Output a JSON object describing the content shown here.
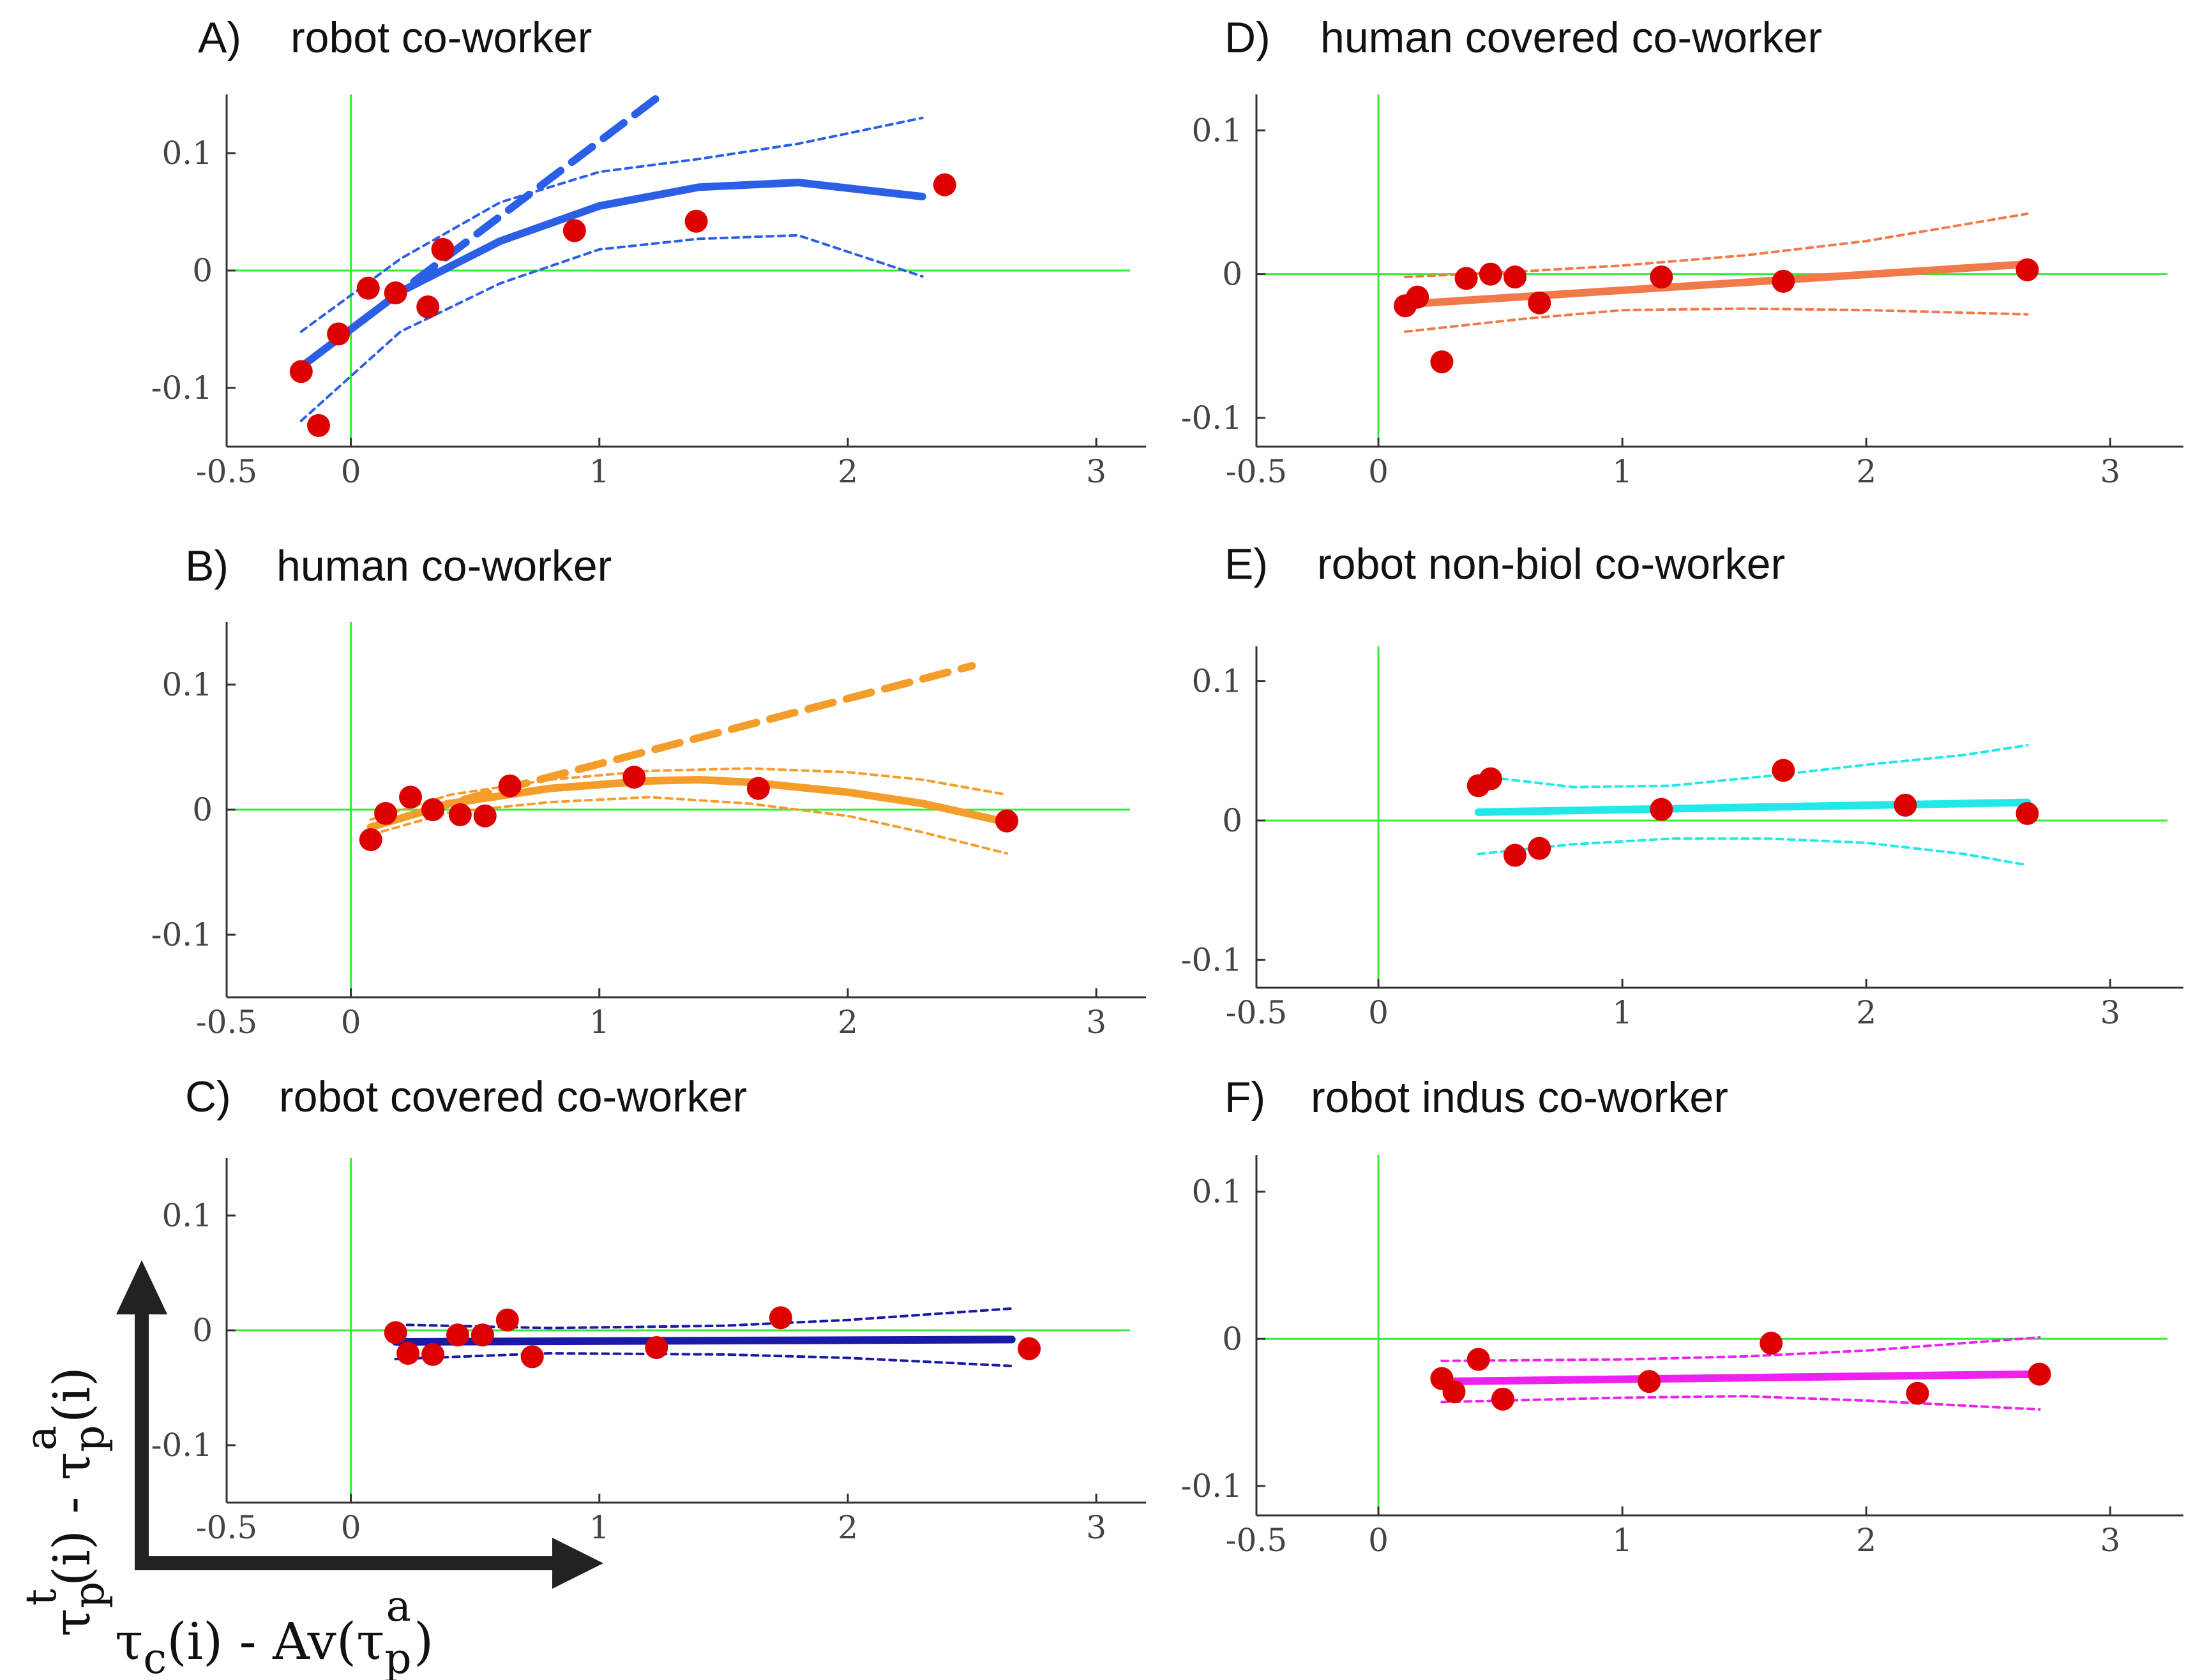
{
  "colors": {
    "zero_lines": "#33ee33",
    "points": "#dd0000",
    "axes": "#333333",
    "arrows": "#222222",
    "robot_co_worker": "#2a5fe6",
    "human_co_worker": "#f59d2a",
    "robot_covered_co_worker": "#1a1aa6",
    "human_covered_co_worker": "#f07a4a",
    "robot_non_biol_co_worker": "#22e8e8",
    "robot_indus_co_worker": "#ee22ee"
  },
  "axis_titles": {
    "y": {
      "base": "τ",
      "sub1": "p",
      "sup1": "t",
      "mid": "(i) - ",
      "base2": "τ",
      "sub2": "p",
      "sup2": "a",
      "end": "(i)"
    },
    "x": {
      "base": "τ",
      "sub1": "c",
      "mid": "(i) - Av(",
      "base2": "τ",
      "sub2": "p",
      "sup2": "a",
      "end": ")"
    }
  },
  "chart_data": [
    {
      "id": "A",
      "label": "A)",
      "title": "robot co-worker",
      "type": "scatter",
      "color_key": "robot_co_worker",
      "xlim": [
        -0.5,
        3.2
      ],
      "ylim": [
        -0.15,
        0.15
      ],
      "xticks": [
        -0.5,
        0,
        1,
        2,
        3
      ],
      "xtick_labels": [
        "-0.5",
        "0",
        "1",
        "2",
        "3"
      ],
      "yticks": [
        -0.1,
        0,
        0.1
      ],
      "ytick_labels": [
        "-0.1",
        "0",
        "0.1"
      ],
      "points": {
        "x": [
          -0.2,
          -0.13,
          -0.05,
          0.07,
          0.18,
          0.31,
          0.37,
          0.9,
          1.39,
          2.39
        ],
        "y": [
          -0.086,
          -0.132,
          -0.054,
          -0.015,
          -0.019,
          -0.031,
          0.018,
          0.034,
          0.042,
          0.073
        ]
      },
      "fit": {
        "x": [
          -0.2,
          0.2,
          0.6,
          1.0,
          1.4,
          1.8,
          2.3
        ],
        "y": [
          -0.082,
          -0.018,
          0.025,
          0.055,
          0.071,
          0.075,
          0.063
        ]
      },
      "ci_upper": {
        "x": [
          -0.2,
          0.2,
          0.6,
          1.0,
          1.4,
          1.8,
          2.3
        ],
        "y": [
          -0.052,
          0.01,
          0.058,
          0.084,
          0.095,
          0.108,
          0.13
        ]
      },
      "ci_lower": {
        "x": [
          -0.2,
          0.2,
          0.6,
          1.0,
          1.4,
          1.8,
          2.3
        ],
        "y": [
          -0.128,
          -0.052,
          -0.011,
          0.018,
          0.027,
          0.03,
          -0.005
        ]
      },
      "linear_fit": {
        "x": [
          0.0,
          1.25
        ],
        "y": [
          -0.05,
          0.15
        ]
      }
    },
    {
      "id": "B",
      "label": "B)",
      "title": "human co-worker",
      "type": "scatter",
      "color_key": "human_co_worker",
      "xlim": [
        -0.5,
        3.2
      ],
      "ylim": [
        -0.15,
        0.15
      ],
      "xticks": [
        -0.5,
        0,
        1,
        2,
        3
      ],
      "xtick_labels": [
        "-0.5",
        "0",
        "1",
        "2",
        "3"
      ],
      "yticks": [
        -0.1,
        0,
        0.1
      ],
      "ytick_labels": [
        "-0.1",
        "0",
        "0.1"
      ],
      "points": {
        "x": [
          0.08,
          0.14,
          0.24,
          0.33,
          0.44,
          0.54,
          0.64,
          1.14,
          1.64,
          2.64
        ],
        "y": [
          -0.024,
          -0.003,
          0.01,
          0.0,
          -0.004,
          -0.005,
          0.019,
          0.026,
          0.017,
          -0.009
        ]
      },
      "fit": {
        "x": [
          0.08,
          0.4,
          0.8,
          1.2,
          1.4,
          1.6,
          2.0,
          2.3,
          2.64
        ],
        "y": [
          -0.014,
          0.005,
          0.017,
          0.023,
          0.024,
          0.022,
          0.014,
          0.005,
          -0.01
        ]
      },
      "ci_upper": {
        "x": [
          0.08,
          0.4,
          0.8,
          1.2,
          1.6,
          2.0,
          2.3,
          2.64
        ],
        "y": [
          -0.008,
          0.012,
          0.024,
          0.031,
          0.033,
          0.03,
          0.024,
          0.012
        ]
      },
      "ci_lower": {
        "x": [
          0.08,
          0.4,
          0.8,
          1.2,
          1.6,
          2.0,
          2.3,
          2.64
        ],
        "y": [
          -0.02,
          -0.002,
          0.006,
          0.01,
          0.005,
          -0.005,
          -0.018,
          -0.035
        ]
      },
      "linear_fit": {
        "x": [
          0.3,
          2.5
        ],
        "y": [
          0.0,
          0.115
        ]
      }
    },
    {
      "id": "C",
      "label": "C)",
      "title": "robot covered co-worker",
      "type": "scatter",
      "color_key": "robot_covered_co_worker",
      "xlim": [
        -0.5,
        3.2
      ],
      "ylim": [
        -0.15,
        0.15
      ],
      "xticks": [
        -0.5,
        0,
        1,
        2,
        3
      ],
      "xtick_labels": [
        "-0.5",
        "0",
        "1",
        "2",
        "3"
      ],
      "yticks": [
        -0.1,
        0,
        0.1
      ],
      "ytick_labels": [
        "-0.1",
        "0",
        "0.1"
      ],
      "points": {
        "x": [
          0.18,
          0.23,
          0.33,
          0.43,
          0.53,
          0.63,
          0.73,
          1.23,
          1.73,
          2.73
        ],
        "y": [
          -0.002,
          -0.02,
          -0.021,
          -0.004,
          -0.004,
          0.009,
          -0.023,
          -0.015,
          0.011,
          -0.016
        ]
      },
      "fit": {
        "x": [
          0.18,
          2.66
        ],
        "y": [
          -0.01,
          -0.008
        ]
      },
      "ci_upper": {
        "x": [
          0.18,
          0.8,
          1.5,
          2.0,
          2.66
        ],
        "y": [
          0.005,
          0.002,
          0.004,
          0.009,
          0.019
        ]
      },
      "ci_lower": {
        "x": [
          0.18,
          0.8,
          1.5,
          2.0,
          2.66
        ],
        "y": [
          -0.025,
          -0.02,
          -0.021,
          -0.024,
          -0.031
        ]
      }
    },
    {
      "id": "D",
      "label": "D)",
      "title": "human covered co-worker",
      "type": "scatter",
      "color_key": "human_covered_co_worker",
      "xlim": [
        -0.5,
        3.3
      ],
      "ylim": [
        -0.12,
        0.125
      ],
      "xticks": [
        -0.5,
        0,
        1,
        2,
        3
      ],
      "xtick_labels": [
        "-0.5",
        "0",
        "1",
        "2",
        "3"
      ],
      "yticks": [
        -0.1,
        0,
        0.1
      ],
      "ytick_labels": [
        "-0.1",
        "0",
        "0.1"
      ],
      "points": {
        "x": [
          0.11,
          0.16,
          0.26,
          0.36,
          0.46,
          0.56,
          0.66,
          1.16,
          1.66,
          2.66
        ],
        "y": [
          -0.022,
          -0.016,
          -0.061,
          -0.003,
          -0.0,
          -0.002,
          -0.02,
          -0.002,
          -0.005,
          0.003
        ]
      },
      "fit": {
        "x": [
          0.11,
          2.66
        ],
        "y": [
          -0.021,
          0.007
        ]
      },
      "ci_upper": {
        "x": [
          0.11,
          0.6,
          1.0,
          1.5,
          2.0,
          2.66
        ],
        "y": [
          -0.002,
          0.002,
          0.006,
          0.013,
          0.023,
          0.042
        ]
      },
      "ci_lower": {
        "x": [
          0.11,
          0.6,
          1.0,
          1.5,
          2.0,
          2.66
        ],
        "y": [
          -0.04,
          -0.031,
          -0.025,
          -0.024,
          -0.025,
          -0.028
        ]
      }
    },
    {
      "id": "E",
      "label": "E)",
      "title": "robot non-biol co-worker",
      "type": "scatter",
      "color_key": "robot_non_biol_co_worker",
      "xlim": [
        -0.5,
        3.3
      ],
      "ylim": [
        -0.12,
        0.125
      ],
      "xticks": [
        -0.5,
        0,
        1,
        2,
        3
      ],
      "xtick_labels": [
        "-0.5",
        "0",
        "1",
        "2",
        "3"
      ],
      "yticks": [
        -0.1,
        0,
        0.1
      ],
      "ytick_labels": [
        "-0.1",
        "0",
        "0.1"
      ],
      "points": {
        "x": [
          0.41,
          0.46,
          0.56,
          0.66,
          1.16,
          1.66,
          2.16,
          2.66
        ],
        "y": [
          0.025,
          0.03,
          -0.025,
          -0.02,
          0.008,
          0.036,
          0.011,
          0.005
        ]
      },
      "fit": {
        "x": [
          0.41,
          2.66
        ],
        "y": [
          0.006,
          0.013
        ]
      },
      "ci_upper": {
        "x": [
          0.41,
          0.8,
          1.2,
          1.6,
          2.0,
          2.4,
          2.66
        ],
        "y": [
          0.032,
          0.024,
          0.025,
          0.032,
          0.04,
          0.047,
          0.054
        ]
      },
      "ci_lower": {
        "x": [
          0.41,
          0.8,
          1.2,
          1.6,
          2.0,
          2.4,
          2.66
        ],
        "y": [
          -0.024,
          -0.017,
          -0.013,
          -0.013,
          -0.016,
          -0.024,
          -0.032
        ]
      }
    },
    {
      "id": "F",
      "label": "F)",
      "title": "robot indus co-worker",
      "type": "scatter",
      "color_key": "robot_indus_co_worker",
      "xlim": [
        -0.5,
        3.3
      ],
      "ylim": [
        -0.12,
        0.125
      ],
      "xticks": [
        -0.5,
        0,
        1,
        2,
        3
      ],
      "xtick_labels": [
        "-0.5",
        "0",
        "1",
        "2",
        "3"
      ],
      "yticks": [
        -0.1,
        0,
        0.1
      ],
      "ytick_labels": [
        "-0.1",
        "0",
        "0.1"
      ],
      "points": {
        "x": [
          0.26,
          0.31,
          0.41,
          0.51,
          1.11,
          1.61,
          2.21,
          2.71
        ],
        "y": [
          -0.027,
          -0.036,
          -0.014,
          -0.041,
          -0.029,
          -0.003,
          -0.037,
          -0.024
        ]
      },
      "fit": {
        "x": [
          0.26,
          2.71
        ],
        "y": [
          -0.029,
          -0.024
        ]
      },
      "ci_upper": {
        "x": [
          0.26,
          1.0,
          1.5,
          2.0,
          2.71
        ],
        "y": [
          -0.015,
          -0.014,
          -0.012,
          -0.008,
          0.001
        ]
      },
      "ci_lower": {
        "x": [
          0.26,
          1.0,
          1.5,
          2.0,
          2.71
        ],
        "y": [
          -0.043,
          -0.04,
          -0.039,
          -0.042,
          -0.048
        ]
      }
    }
  ]
}
